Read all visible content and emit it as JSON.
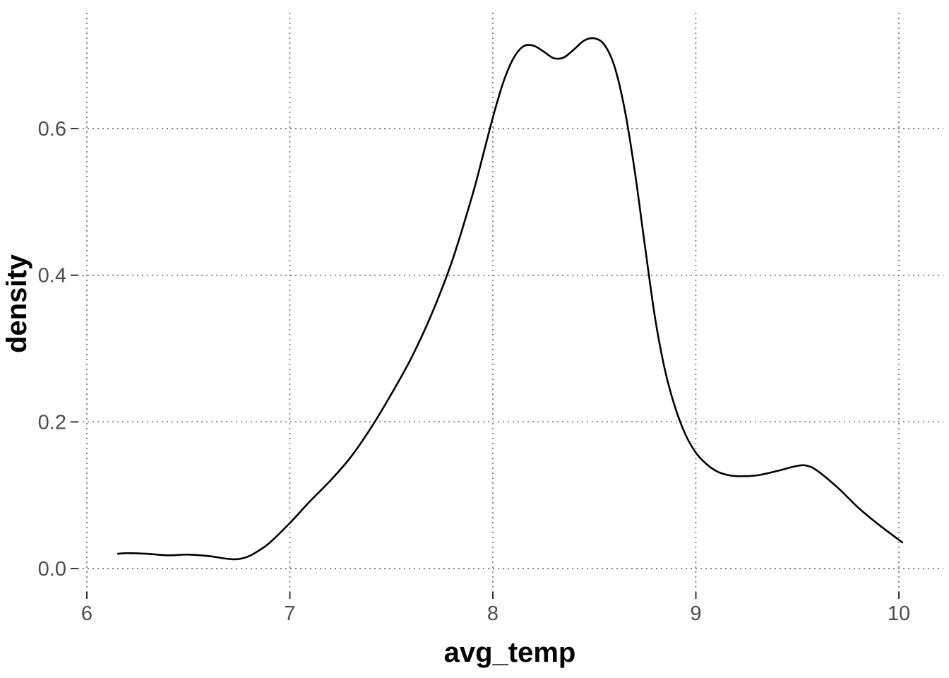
{
  "chart_data": {
    "type": "line",
    "title": "",
    "xlabel": "avg_temp",
    "ylabel": "density",
    "xlim": [
      6,
      10.2
    ],
    "ylim": [
      -0.035,
      0.76
    ],
    "x_ticks": [
      6,
      7,
      8,
      9,
      10
    ],
    "x_tick_labels": [
      "6",
      "7",
      "8",
      "9",
      "10"
    ],
    "y_ticks": [
      0.0,
      0.2,
      0.4,
      0.6
    ],
    "y_tick_labels": [
      "0.0",
      "0.2",
      "0.4",
      "0.6"
    ],
    "grid": true,
    "legend": "none",
    "line_color": "#000000",
    "series": [
      {
        "x": [
          6.15,
          6.2,
          6.3,
          6.4,
          6.5,
          6.6,
          6.7,
          6.75,
          6.8,
          6.85,
          6.9,
          7.0,
          7.1,
          7.2,
          7.3,
          7.4,
          7.5,
          7.6,
          7.7,
          7.8,
          7.9,
          7.95,
          8.0,
          8.05,
          8.1,
          8.15,
          8.2,
          8.25,
          8.3,
          8.35,
          8.4,
          8.45,
          8.5,
          8.55,
          8.6,
          8.65,
          8.7,
          8.75,
          8.8,
          8.85,
          8.9,
          8.95,
          9.0,
          9.05,
          9.1,
          9.15,
          9.2,
          9.3,
          9.4,
          9.5,
          9.55,
          9.6,
          9.7,
          9.8,
          9.9,
          10.02
        ],
        "y": [
          0.02,
          0.021,
          0.02,
          0.018,
          0.019,
          0.017,
          0.013,
          0.013,
          0.017,
          0.025,
          0.035,
          0.062,
          0.092,
          0.12,
          0.152,
          0.192,
          0.238,
          0.288,
          0.348,
          0.42,
          0.51,
          0.562,
          0.615,
          0.662,
          0.695,
          0.712,
          0.713,
          0.705,
          0.696,
          0.697,
          0.708,
          0.72,
          0.723,
          0.714,
          0.684,
          0.625,
          0.54,
          0.438,
          0.34,
          0.268,
          0.218,
          0.182,
          0.158,
          0.143,
          0.133,
          0.128,
          0.126,
          0.127,
          0.133,
          0.14,
          0.14,
          0.133,
          0.11,
          0.083,
          0.06,
          0.035
        ]
      }
    ]
  }
}
